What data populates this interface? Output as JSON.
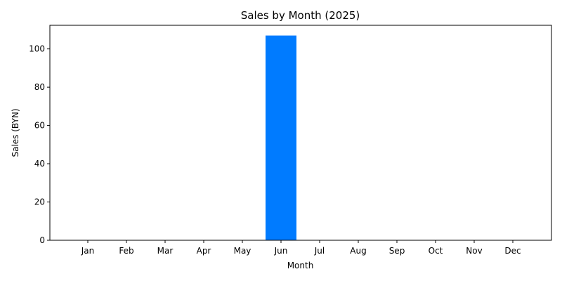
{
  "chart_data": {
    "type": "bar",
    "title": "Sales by Month (2025)",
    "xlabel": "Month",
    "ylabel": "Sales (BYN)",
    "categories": [
      "Jan",
      "Feb",
      "Mar",
      "Apr",
      "May",
      "Jun",
      "Jul",
      "Aug",
      "Sep",
      "Oct",
      "Nov",
      "Dec"
    ],
    "values": [
      0,
      0,
      0,
      0,
      0,
      107,
      0,
      0,
      0,
      0,
      0,
      0
    ],
    "ylim": [
      0,
      112.35
    ],
    "yticks": [
      0,
      20,
      40,
      60,
      80,
      100
    ],
    "bar_color": "#007bff",
    "grid": false,
    "legend": "none"
  }
}
